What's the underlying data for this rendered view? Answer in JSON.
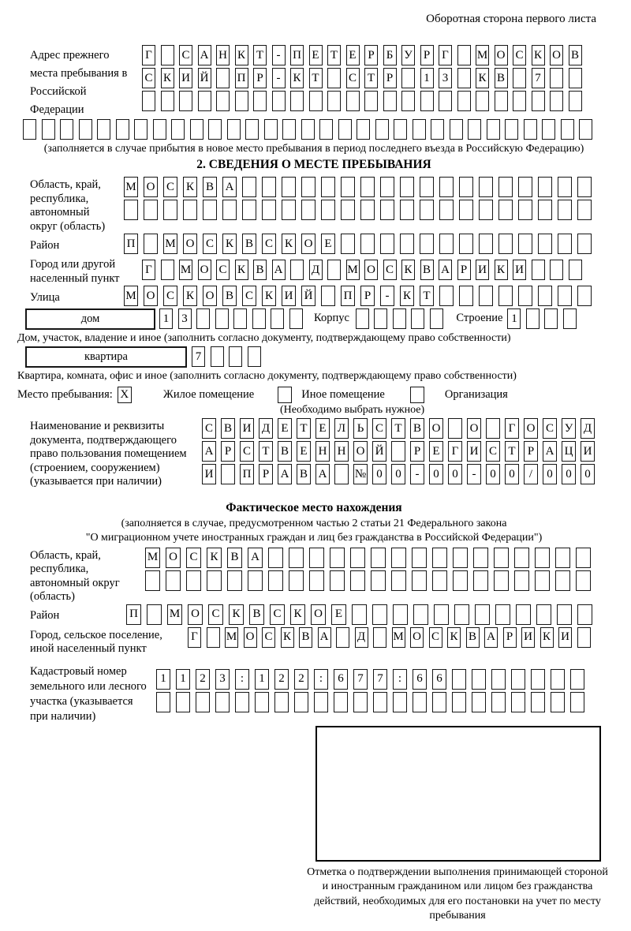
{
  "header": "Оборотная сторона первого листа",
  "prev_address": {
    "label": "Адрес прежнего места пребывания в Российской Федерации",
    "rows": [
      {
        "text": "Г САНКТ-ПЕТЕРБУРГ МОСКОВ",
        "len": 24
      },
      {
        "text": "СКИЙ ПР-КТ СТР 13 КВ 7",
        "len": 24
      },
      {
        "text": "",
        "len": 24
      },
      {
        "text": "",
        "len": 31
      }
    ],
    "note": "(заполняется в случае прибытия в новое место пребывания в период последнего въезда в Российскую Федерацию)"
  },
  "section2": {
    "title": "2. СВЕДЕНИЯ О МЕСТЕ ПРЕБЫВАНИЯ",
    "region": {
      "label": "Область, край, республика, автономный округ (область)",
      "rows": [
        {
          "text": "МОСКВА",
          "len": 24
        },
        {
          "text": "",
          "len": 24
        }
      ]
    },
    "district": {
      "label": "Район",
      "row": {
        "text": "П МОСКВСКОЕ",
        "len": 24
      }
    },
    "city": {
      "label": "Город или другой населенный пункт",
      "row": {
        "text": "Г МОСКВА Д МОСКВАРИКИ",
        "len": 24
      }
    },
    "street": {
      "label": "Улица",
      "row": {
        "text": "МОСКОВСКИЙ ПР-КТ",
        "len": 24
      }
    },
    "house": {
      "label": "дом",
      "cells": {
        "text": "13",
        "len": 8
      },
      "building_label": "Корпус",
      "building_cells": {
        "text": "",
        "len": 5
      },
      "structure_label": "Строение",
      "structure_cells": {
        "text": "1",
        "len": 4
      }
    },
    "house_note": "Дом, участок, владение и иное (заполнить согласно документу, подтверждающему право собственности)",
    "apartment": {
      "label": "квартира",
      "cells": {
        "text": "7",
        "len": 4
      }
    },
    "apartment_note": "Квартира, комната, офис и иное (заполнить согласно документу, подтверждающему право собственности)",
    "stay_type": {
      "label": "Место пребывания:",
      "options": [
        {
          "label": "Жилое помещение",
          "box": {
            "text": "X",
            "len": 1
          }
        },
        {
          "label": "Иное помещение",
          "box": {
            "text": "",
            "len": 1
          }
        },
        {
          "label": "Организация",
          "box": {
            "text": "",
            "len": 1
          }
        }
      ],
      "note": "(Необходимо выбрать нужное)"
    },
    "doc": {
      "label": "Наименование и реквизиты документа, подтверждающего право пользования помещением (строением, сооружением) (указывается при наличии)",
      "rows": [
        {
          "text": "СВИДЕТЕЛЬСТВО О ГОСУД",
          "len": 21
        },
        {
          "text": "АРСТВЕННОЙ РЕГИСТРАЦИ",
          "len": 21
        },
        {
          "text": "И ПРАВА №00-00-00/000",
          "len": 21
        }
      ]
    }
  },
  "actual_location": {
    "title": "Фактическое место нахождения",
    "note_line1": "(заполняется в случае, предусмотренном частью 2 статьи 21 Федерального закона",
    "note_line2": "\"О миграционном учете иностранных граждан и лиц без гражданства в Российской Федерации\")",
    "region": {
      "label": "Область, край, республика, автономный округ (область)",
      "rows": [
        {
          "text": "МОСКВА",
          "len": 22
        },
        {
          "text": "",
          "len": 22
        }
      ]
    },
    "district": {
      "label": "Район",
      "row": {
        "text": "П МОСКВСКОЕ",
        "len": 23
      }
    },
    "city": {
      "label": "Город, сельское поселение, иной населенный пункт",
      "row": {
        "text": "Г МОСКВА Д МОСКВАРИКИ",
        "len": 22
      }
    },
    "cadastral": {
      "label": "Кадастровый номер земельного или лесного участка (указывается при наличии)",
      "rows": [
        {
          "text": "1123:122:677:66",
          "len": 22
        },
        {
          "text": "",
          "len": 22
        }
      ]
    },
    "stamp_note": "Отметка о подтверждении выполнения принимающей стороной и иностранным гражданином или лицом без гражданства действий, необходимых для его постановки на учет по месту пребывания"
  }
}
